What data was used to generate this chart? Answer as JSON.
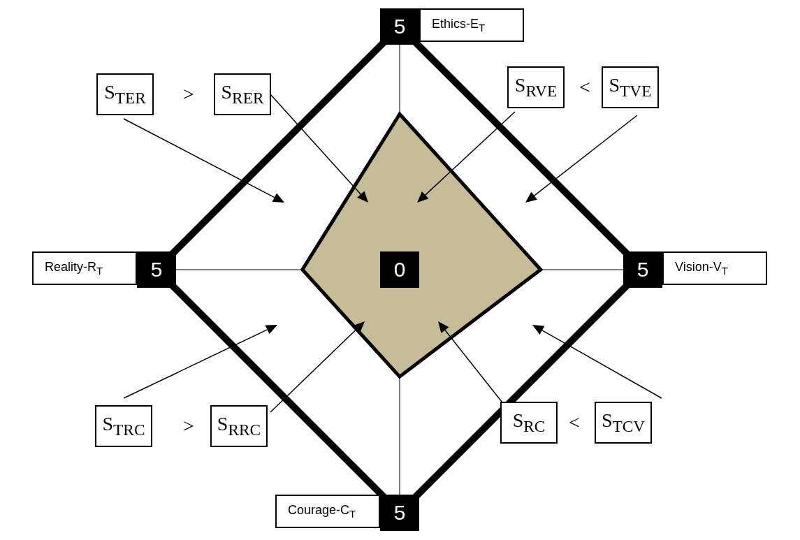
{
  "chart_data": {
    "type": "radar",
    "categories": [
      "Ethics-E$_{T}$",
      "Vision-V$_{T}$",
      "Courage-C$_{T}$",
      "Reality-R$_{T}$"
    ],
    "series": [
      {
        "color": "#c4bd97",
        "values": [
          3.2,
          2.9,
          2.2,
          2.0
        ]
      }
    ],
    "ylim": [
      0,
      5
    ],
    "yticks": [
      0,
      5
    ],
    "grid": true,
    "annotations": [
      {
        "text": "5",
        "x": "Vision-V$_{T}$"
      },
      {
        "text": "5",
        "x": "Courage-C$_{T}$"
      },
      {
        "text": "5",
        "x": "Reality-R$_{T}$"
      },
      "S$_{TER}$",
      ">",
      "S$_{RER}$",
      "S$_{RVE}$",
      "<",
      "S$_{TVE}$",
      "S$_{TRC}$",
      ">",
      "S$_{RRC}$",
      "S$_{RC}$",
      "<",
      "S$_{TCV}$"
    ]
  }
}
